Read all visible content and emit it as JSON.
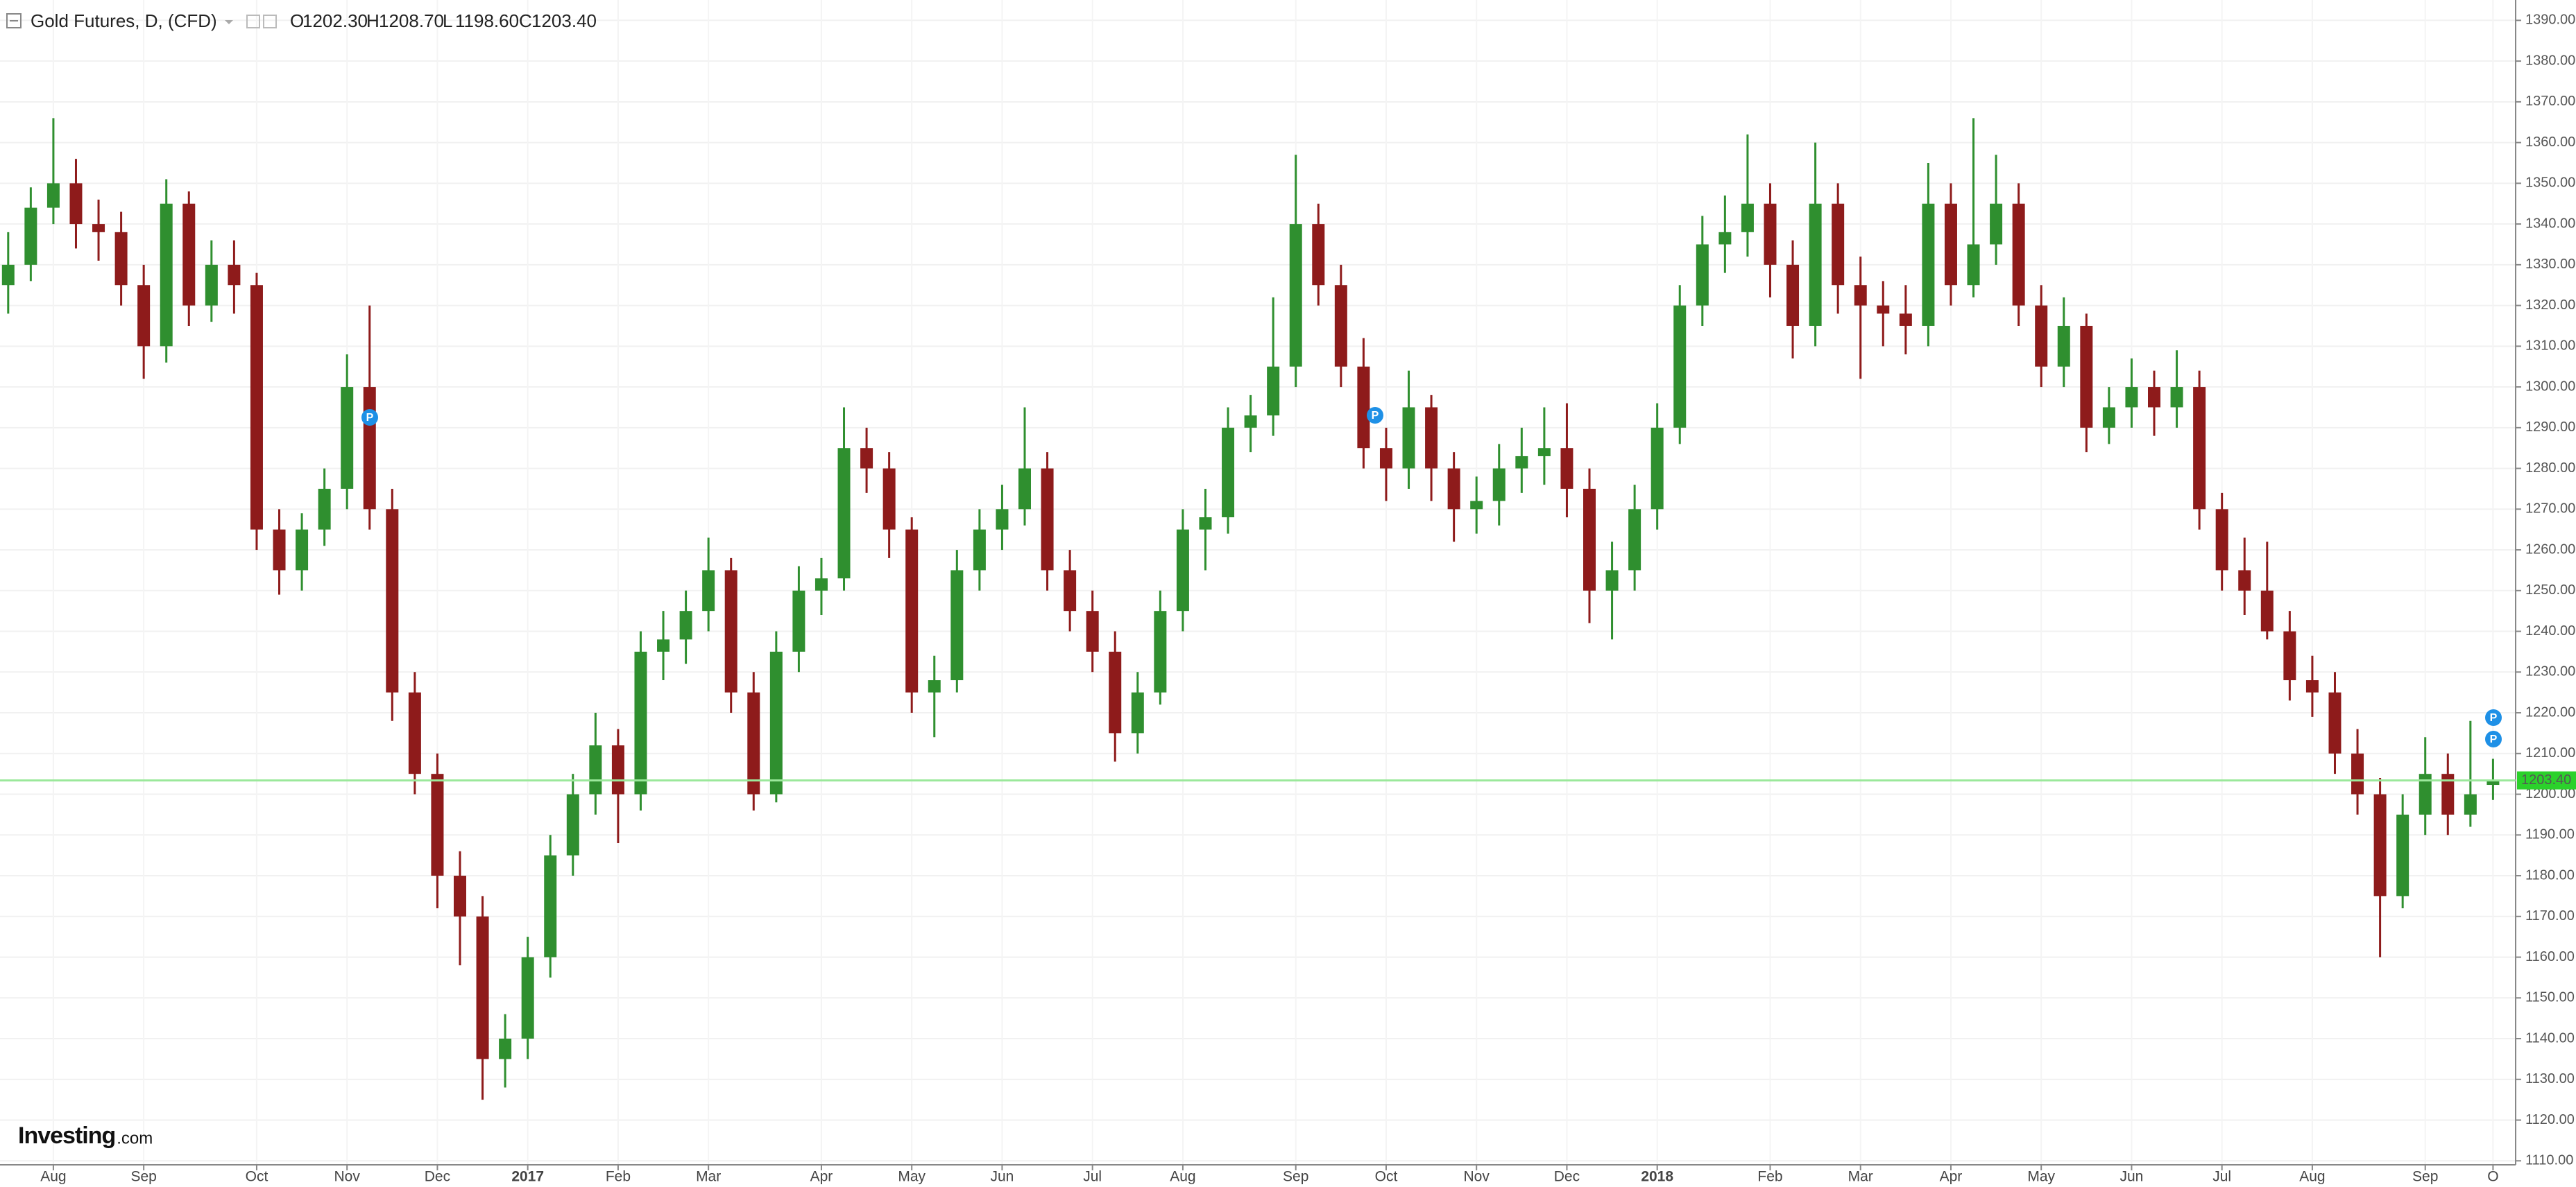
{
  "chart_data": {
    "type": "candlestick",
    "title": "Gold Futures, D, (CFD)",
    "legend_values": [
      {
        "prefix": "O",
        "value": 1202.3,
        "label": "1202.30"
      },
      {
        "prefix": "H",
        "value": 1208.7,
        "label": "1208.70"
      },
      {
        "prefix": "L",
        "value": 1198.6,
        "label": "1198.60"
      },
      {
        "prefix": "C",
        "value": 1203.4,
        "label": "1203.40"
      }
    ],
    "current_price": {
      "value": 1203.4,
      "label": "1203.40"
    },
    "up_color": "#2f8f2f",
    "down_color": "#8e1b1b",
    "grid": true,
    "markers": [
      "P",
      "P",
      "P",
      "P"
    ],
    "watermark": [
      "Investing",
      ".com"
    ],
    "categories": [
      null,
      null,
      "Aug",
      null,
      null,
      null,
      "Sep",
      null,
      null,
      null,
      null,
      "Oct",
      null,
      null,
      null,
      "Nov",
      null,
      null,
      null,
      "Dec",
      null,
      null,
      null,
      "2017",
      null,
      null,
      null,
      "Feb",
      null,
      null,
      null,
      "Mar",
      null,
      null,
      null,
      null,
      "Apr",
      null,
      null,
      null,
      "May",
      null,
      null,
      null,
      "Jun",
      null,
      null,
      null,
      "Jul",
      null,
      null,
      null,
      "Aug",
      null,
      null,
      null,
      null,
      "Sep",
      null,
      null,
      null,
      "Oct",
      null,
      null,
      null,
      "Nov",
      null,
      null,
      null,
      "Dec",
      null,
      null,
      null,
      "2018",
      null,
      null,
      null,
      null,
      "Feb",
      null,
      null,
      null,
      "Mar",
      null,
      null,
      null,
      "Apr",
      null,
      null,
      null,
      "May",
      null,
      null,
      null,
      "Jun",
      null,
      null,
      null,
      "Jul",
      null,
      null,
      null,
      "Aug",
      null,
      null,
      null,
      null,
      "Sep",
      null,
      null,
      "O"
    ],
    "open": [
      1325,
      1330,
      1344,
      1350,
      1340,
      1338,
      1325,
      1310,
      1345,
      1320,
      1330,
      1325,
      1265,
      1255,
      1265,
      1275,
      1300,
      1270,
      1225,
      1205,
      1180,
      1170,
      1135,
      1140,
      1160,
      1185,
      1200,
      1212,
      1200,
      1235,
      1238,
      1245,
      1255,
      1225,
      1200,
      1235,
      1250,
      1253,
      1285,
      1280,
      1265,
      1225,
      1228,
      1255,
      1265,
      1270,
      1280,
      1255,
      1245,
      1235,
      1215,
      1225,
      1245,
      1265,
      1268,
      1290,
      1293,
      1305,
      1340,
      1325,
      1305,
      1285,
      1280,
      1295,
      1280,
      1270,
      1272,
      1280,
      1283,
      1285,
      1275,
      1250,
      1255,
      1270,
      1290,
      1320,
      1335,
      1338,
      1345,
      1330,
      1315,
      1345,
      1325,
      1320,
      1318,
      1315,
      1345,
      1325,
      1335,
      1345,
      1320,
      1305,
      1315,
      1290,
      1295,
      1300,
      1295,
      1300,
      1270,
      1255,
      1250,
      1240,
      1228,
      1225,
      1210,
      1200,
      1175,
      1195,
      1205,
      1195,
      1202.3
    ],
    "high": [
      1338,
      1349,
      1366,
      1356,
      1346,
      1343,
      1330,
      1351,
      1348,
      1336,
      1336,
      1328,
      1270,
      1269,
      1280,
      1308,
      1320,
      1275,
      1230,
      1210,
      1186,
      1175,
      1146,
      1165,
      1190,
      1205,
      1220,
      1216,
      1240,
      1245,
      1250,
      1263,
      1258,
      1230,
      1240,
      1256,
      1258,
      1295,
      1290,
      1284,
      1268,
      1234,
      1260,
      1270,
      1276,
      1295,
      1284,
      1260,
      1250,
      1240,
      1230,
      1250,
      1270,
      1275,
      1295,
      1298,
      1322,
      1357,
      1345,
      1330,
      1312,
      1290,
      1304,
      1298,
      1284,
      1278,
      1286,
      1290,
      1295,
      1296,
      1280,
      1262,
      1276,
      1296,
      1325,
      1342,
      1347,
      1362,
      1350,
      1336,
      1360,
      1350,
      1332,
      1326,
      1325,
      1355,
      1350,
      1366,
      1357,
      1350,
      1325,
      1322,
      1318,
      1300,
      1307,
      1304,
      1309,
      1304,
      1274,
      1263,
      1262,
      1245,
      1234,
      1230,
      1216,
      1204,
      1200,
      1214,
      1210,
      1218,
      1208.7
    ],
    "low": [
      1318,
      1326,
      1340,
      1334,
      1331,
      1320,
      1302,
      1306,
      1315,
      1316,
      1318,
      1260,
      1249,
      1250,
      1261,
      1270,
      1265,
      1218,
      1200,
      1172,
      1158,
      1125,
      1128,
      1135,
      1155,
      1180,
      1195,
      1188,
      1196,
      1228,
      1232,
      1240,
      1220,
      1196,
      1198,
      1230,
      1244,
      1250,
      1274,
      1258,
      1220,
      1214,
      1225,
      1250,
      1260,
      1266,
      1250,
      1240,
      1230,
      1208,
      1210,
      1222,
      1240,
      1255,
      1264,
      1284,
      1288,
      1300,
      1320,
      1300,
      1280,
      1272,
      1275,
      1272,
      1262,
      1264,
      1266,
      1274,
      1276,
      1268,
      1242,
      1238,
      1250,
      1265,
      1286,
      1315,
      1328,
      1332,
      1322,
      1307,
      1310,
      1318,
      1302,
      1310,
      1308,
      1310,
      1320,
      1322,
      1330,
      1315,
      1300,
      1300,
      1284,
      1286,
      1290,
      1288,
      1290,
      1265,
      1250,
      1244,
      1238,
      1223,
      1219,
      1205,
      1195,
      1160,
      1172,
      1190,
      1190,
      1192,
      1198.6
    ],
    "close": [
      1330,
      1344,
      1350,
      1340,
      1338,
      1325,
      1310,
      1345,
      1320,
      1330,
      1325,
      1265,
      1255,
      1265,
      1275,
      1300,
      1270,
      1225,
      1205,
      1180,
      1170,
      1135,
      1140,
      1160,
      1185,
      1200,
      1212,
      1200,
      1235,
      1238,
      1245,
      1255,
      1225,
      1200,
      1235,
      1250,
      1253,
      1285,
      1280,
      1265,
      1225,
      1228,
      1255,
      1265,
      1270,
      1280,
      1255,
      1245,
      1235,
      1215,
      1225,
      1245,
      1265,
      1268,
      1290,
      1293,
      1305,
      1340,
      1325,
      1305,
      1285,
      1280,
      1295,
      1280,
      1270,
      1272,
      1280,
      1283,
      1285,
      1275,
      1250,
      1255,
      1270,
      1290,
      1320,
      1335,
      1338,
      1345,
      1330,
      1315,
      1345,
      1325,
      1320,
      1318,
      1315,
      1345,
      1325,
      1335,
      1345,
      1320,
      1305,
      1315,
      1290,
      1295,
      1300,
      1295,
      1300,
      1270,
      1255,
      1250,
      1240,
      1228,
      1225,
      1210,
      1200,
      1175,
      1195,
      1205,
      1195,
      1200,
      1203.4
    ],
    "ylim": [
      1108,
      1395
    ],
    "yticks": [
      {
        "value": 1110,
        "label": "1110.00"
      },
      {
        "value": 1120,
        "label": "1120.00"
      },
      {
        "value": 1130,
        "label": "1130.00"
      },
      {
        "value": 1140,
        "label": "1140.00"
      },
      {
        "value": 1150,
        "label": "1150.00"
      },
      {
        "value": 1160,
        "label": "1160.00"
      },
      {
        "value": 1170,
        "label": "1170.00"
      },
      {
        "value": 1180,
        "label": "1180.00"
      },
      {
        "value": 1190,
        "label": "1190.00"
      },
      {
        "value": 1200,
        "label": "1200.00"
      },
      {
        "value": 1210,
        "label": "1210.00"
      },
      {
        "value": 1220,
        "label": "1220.00"
      },
      {
        "value": 1230,
        "label": "1230.00"
      },
      {
        "value": 1240,
        "label": "1240.00"
      },
      {
        "value": 1250,
        "label": "1250.00"
      },
      {
        "value": 1260,
        "label": "1260.00"
      },
      {
        "value": 1270,
        "label": "1270.00"
      },
      {
        "value": 1280,
        "label": "1280.00"
      },
      {
        "value": 1290,
        "label": "1290.00"
      },
      {
        "value": 1300,
        "label": "1300.00"
      },
      {
        "value": 1310,
        "label": "1310.00"
      },
      {
        "value": 1320,
        "label": "1320.00"
      },
      {
        "value": 1330,
        "label": "1330.00"
      },
      {
        "value": 1340,
        "label": "1340.00"
      },
      {
        "value": 1350,
        "label": "1350.00"
      },
      {
        "value": 1360,
        "label": "1360.00"
      },
      {
        "value": 1370,
        "label": "1370.00"
      },
      {
        "value": 1380,
        "label": "1380.00"
      },
      {
        "value": 1390,
        "label": "1390.00"
      }
    ]
  }
}
